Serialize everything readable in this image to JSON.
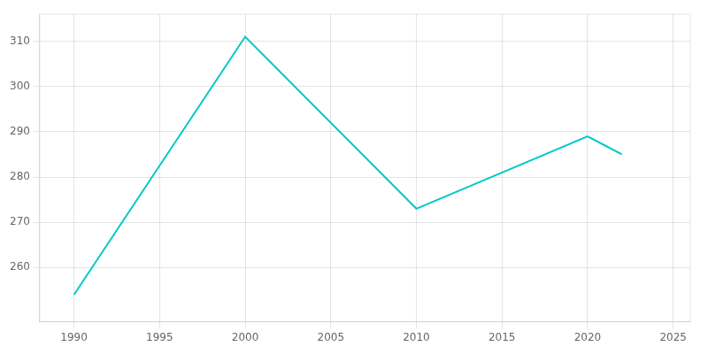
{
  "chart_data": {
    "type": "line",
    "x": [
      1990,
      2000,
      2010,
      2020,
      2021,
      2022
    ],
    "values": [
      254,
      311,
      273,
      289,
      287,
      285
    ],
    "color": "#00C8C8",
    "xlim": [
      1988,
      2026
    ],
    "ylim": [
      248,
      316
    ],
    "xticks": [
      1990,
      1995,
      2000,
      2005,
      2010,
      2015,
      2020,
      2025
    ],
    "yticks": [
      260,
      270,
      280,
      290,
      300,
      310
    ],
    "grid": true
  }
}
